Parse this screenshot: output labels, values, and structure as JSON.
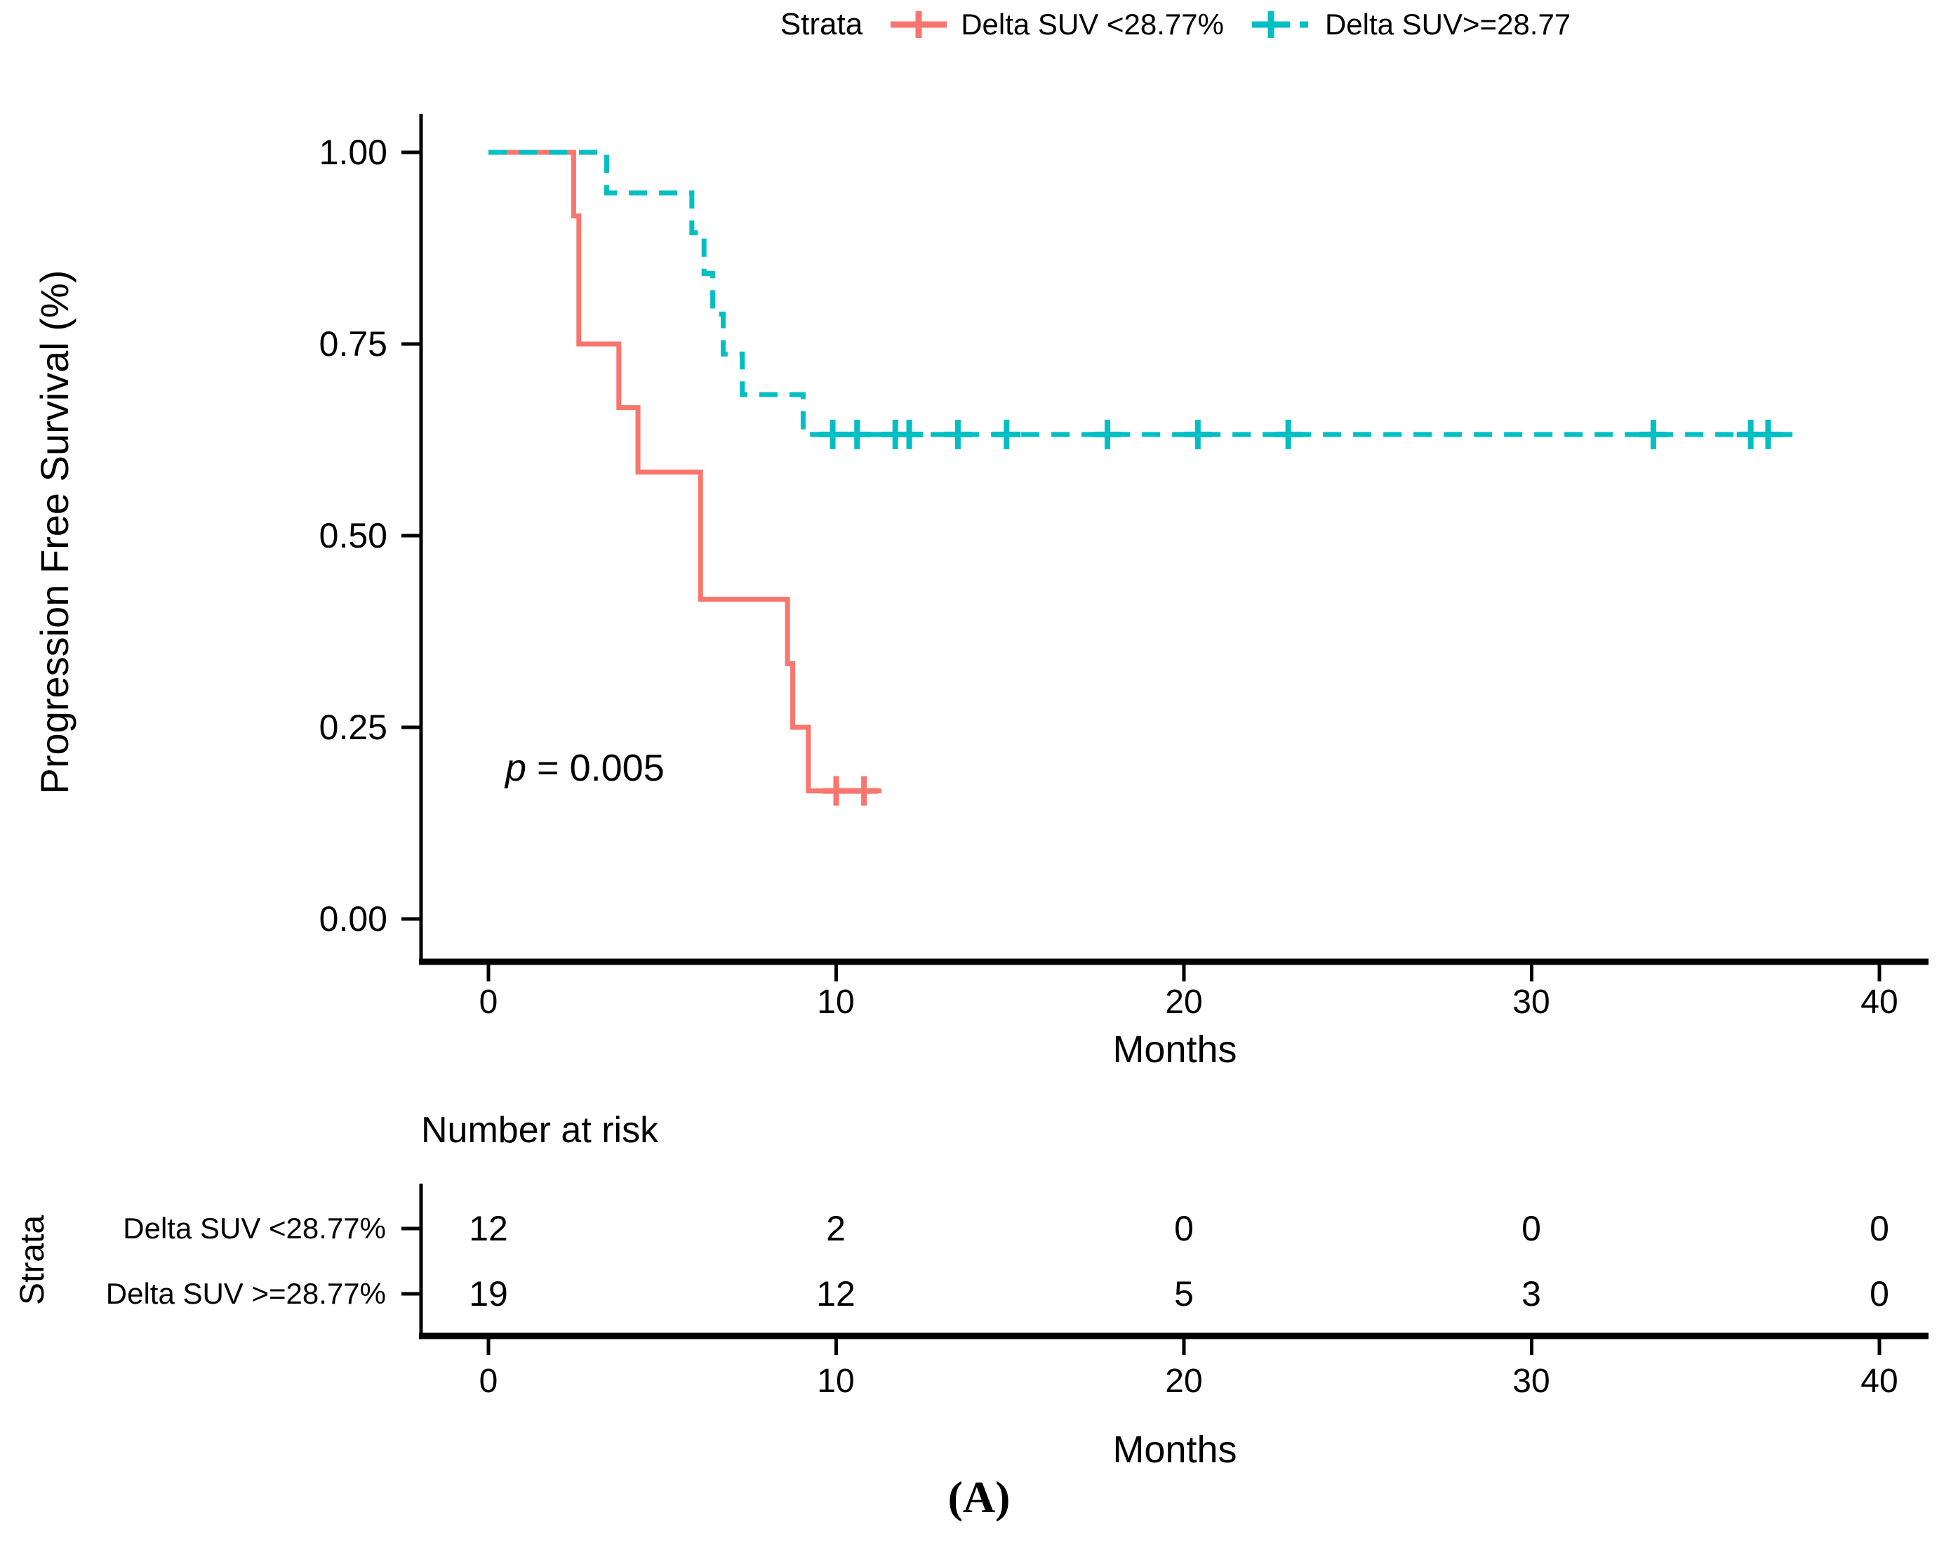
{
  "figure_label": "(A)",
  "legend": {
    "title": "Strata",
    "items": [
      {
        "label": "Delta SUV <28.77%",
        "color": "#F8766D",
        "linestyle": "solid"
      },
      {
        "label": "Delta SUV>=28.77",
        "color": "#00BFC4",
        "linestyle": "dashed"
      }
    ]
  },
  "annotation": {
    "p_prefix": "p",
    "p_rest": " = 0.005"
  },
  "chart_data": {
    "type": "line",
    "subtype": "kaplan-meier-step-curves",
    "title": "",
    "xlabel": "Months",
    "ylabel": "Progression Free Survival (%)",
    "xlim": [
      0,
      40
    ],
    "ylim": [
      0.0,
      1.0
    ],
    "x_ticks": [
      0,
      10,
      20,
      30,
      40
    ],
    "y_ticks": [
      "1.00",
      "0.75",
      "0.50",
      "0.25",
      "0.00"
    ],
    "y_tick_values": [
      1.0,
      0.75,
      0.5,
      0.25,
      0.0
    ],
    "grid": "off",
    "legend_position": "top",
    "series": [
      {
        "name": "Delta SUV <28.77%",
        "color": "#F8766D",
        "dash": "solid",
        "steps": [
          [
            0,
            1.0
          ],
          [
            2.45,
            1.0
          ],
          [
            2.45,
            0.917
          ],
          [
            2.6,
            0.917
          ],
          [
            2.6,
            0.75
          ],
          [
            3.75,
            0.75
          ],
          [
            3.75,
            0.667
          ],
          [
            4.3,
            0.667
          ],
          [
            4.3,
            0.583
          ],
          [
            6.1,
            0.583
          ],
          [
            6.1,
            0.417
          ],
          [
            8.6,
            0.417
          ],
          [
            8.6,
            0.333
          ],
          [
            8.75,
            0.333
          ],
          [
            8.75,
            0.25
          ],
          [
            9.2,
            0.25
          ],
          [
            9.2,
            0.167
          ],
          [
            11.3,
            0.167
          ]
        ],
        "censor_marks": [
          [
            10.0,
            0.167
          ],
          [
            10.8,
            0.167
          ]
        ]
      },
      {
        "name": "Delta SUV>=28.77",
        "color": "#00BFC4",
        "dash": "dashed",
        "steps": [
          [
            0,
            1.0
          ],
          [
            3.4,
            1.0
          ],
          [
            3.4,
            0.947
          ],
          [
            5.85,
            0.947
          ],
          [
            5.85,
            0.895
          ],
          [
            6.2,
            0.895
          ],
          [
            6.2,
            0.842
          ],
          [
            6.45,
            0.842
          ],
          [
            6.45,
            0.789
          ],
          [
            6.75,
            0.789
          ],
          [
            6.75,
            0.737
          ],
          [
            7.3,
            0.737
          ],
          [
            7.3,
            0.684
          ],
          [
            9.05,
            0.684
          ],
          [
            9.05,
            0.632
          ],
          [
            37.5,
            0.632
          ]
        ],
        "censor_marks": [
          [
            9.9,
            0.632
          ],
          [
            10.6,
            0.632
          ],
          [
            11.7,
            0.632
          ],
          [
            12.1,
            0.632
          ],
          [
            13.5,
            0.632
          ],
          [
            14.9,
            0.632
          ],
          [
            17.8,
            0.632
          ],
          [
            20.4,
            0.632
          ],
          [
            23.0,
            0.632
          ],
          [
            33.5,
            0.632
          ],
          [
            36.3,
            0.632
          ],
          [
            36.8,
            0.632
          ]
        ]
      }
    ],
    "annotations": [
      {
        "text": "p = 0.005",
        "x": 0.5,
        "y": 0.19
      }
    ]
  },
  "risk_table": {
    "title": "Number at risk",
    "axis_label": "Strata",
    "xlabel": "Months",
    "x_ticks": [
      0,
      10,
      20,
      30,
      40
    ],
    "rows": [
      {
        "label": "Delta SUV <28.77%",
        "counts": [
          12,
          2,
          0,
          0,
          0
        ]
      },
      {
        "label": "Delta SUV >=28.77%",
        "counts": [
          19,
          12,
          5,
          3,
          0
        ]
      }
    ]
  }
}
